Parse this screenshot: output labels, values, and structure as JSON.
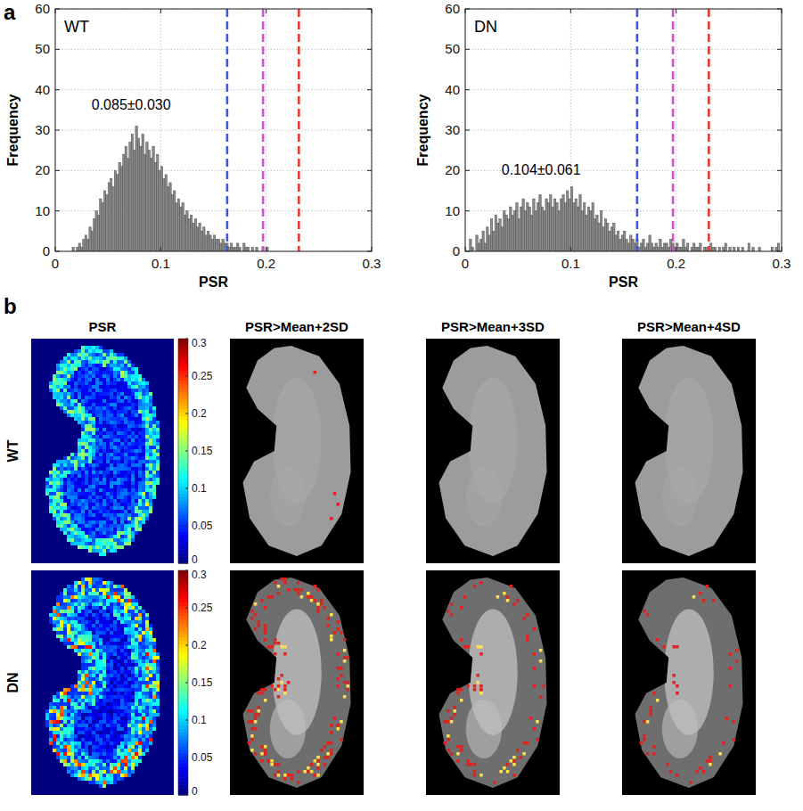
{
  "panel_labels": [
    "a",
    "b"
  ],
  "chart_data": [
    {
      "type": "histogram",
      "title": "WT",
      "xlabel": "PSR",
      "ylabel": "Frequency",
      "annotation": {
        "text": "0.085±0.030",
        "x": 0.072,
        "y": 35
      },
      "xlim": [
        0,
        0.3
      ],
      "xticks": [
        0,
        0.1,
        0.2,
        0.3
      ],
      "ylim": [
        0,
        60
      ],
      "yticks": [
        0,
        10,
        20,
        30,
        40,
        50,
        60
      ],
      "grid": true,
      "color": "#8c8c8c",
      "bins": [
        0.014,
        0.016,
        0.018,
        0.02,
        0.022,
        0.024,
        0.026,
        0.028,
        0.03,
        0.032,
        0.034,
        0.036,
        0.038,
        0.04,
        0.042,
        0.044,
        0.046,
        0.048,
        0.05,
        0.052,
        0.054,
        0.056,
        0.058,
        0.06,
        0.062,
        0.064,
        0.066,
        0.068,
        0.07,
        0.072,
        0.074,
        0.076,
        0.078,
        0.08,
        0.082,
        0.084,
        0.086,
        0.088,
        0.09,
        0.092,
        0.094,
        0.096,
        0.098,
        0.1,
        0.102,
        0.104,
        0.106,
        0.108,
        0.11,
        0.112,
        0.114,
        0.116,
        0.118,
        0.12,
        0.122,
        0.124,
        0.126,
        0.128,
        0.13,
        0.132,
        0.134,
        0.136,
        0.138,
        0.14,
        0.142,
        0.144,
        0.146,
        0.148,
        0.15,
        0.152,
        0.154,
        0.156,
        0.158,
        0.16,
        0.162,
        0.164,
        0.166,
        0.168,
        0.17,
        0.172,
        0.174,
        0.176,
        0.178,
        0.18,
        0.182,
        0.184,
        0.186,
        0.188,
        0.19,
        0.192,
        0.194,
        0.196,
        0.198,
        0.2,
        0.202,
        0.204
      ],
      "counts": [
        0,
        1,
        0,
        1,
        2,
        1,
        3,
        4,
        3,
        6,
        5,
        8,
        10,
        9,
        13,
        12,
        15,
        14,
        17,
        18,
        16,
        20,
        19,
        22,
        21,
        24,
        26,
        23,
        27,
        29,
        25,
        31,
        28,
        26,
        29,
        24,
        27,
        25,
        23,
        26,
        22,
        24,
        20,
        21,
        18,
        19,
        16,
        17,
        14,
        15,
        12,
        13,
        11,
        12,
        9,
        10,
        8,
        9,
        7,
        8,
        6,
        7,
        5,
        6,
        4,
        5,
        4,
        3,
        4,
        3,
        3,
        2,
        3,
        2,
        2,
        1,
        2,
        1,
        1,
        2,
        1,
        0,
        2,
        1,
        1,
        0,
        1,
        0,
        1,
        0,
        0,
        1,
        0,
        1,
        0
      ],
      "reference_lines": {
        "values": [
          0.163,
          0.197,
          0.231
        ],
        "colors": [
          "#3d5bd9",
          "#cc55cc",
          "#e8392e"
        ]
      },
      "line_style": "dashed"
    },
    {
      "type": "histogram",
      "title": "DN",
      "xlabel": "PSR",
      "ylabel": "Frequency",
      "annotation": {
        "text": "0.104±0.061",
        "x": 0.072,
        "y": 19
      },
      "xlim": [
        0,
        0.3
      ],
      "xticks": [
        0,
        0.1,
        0.2,
        0.3
      ],
      "ylim": [
        0,
        60
      ],
      "yticks": [
        0,
        10,
        20,
        30,
        40,
        50,
        60
      ],
      "grid": true,
      "color": "#8c8c8c",
      "bins": [
        0,
        0.002,
        0.004,
        0.006,
        0.008,
        0.01,
        0.012,
        0.014,
        0.016,
        0.018,
        0.02,
        0.022,
        0.024,
        0.026,
        0.028,
        0.03,
        0.032,
        0.034,
        0.036,
        0.038,
        0.04,
        0.042,
        0.044,
        0.046,
        0.048,
        0.05,
        0.052,
        0.054,
        0.056,
        0.058,
        0.06,
        0.062,
        0.064,
        0.066,
        0.068,
        0.07,
        0.072,
        0.074,
        0.076,
        0.078,
        0.08,
        0.082,
        0.084,
        0.086,
        0.088,
        0.09,
        0.092,
        0.094,
        0.096,
        0.098,
        0.1,
        0.102,
        0.104,
        0.106,
        0.108,
        0.11,
        0.112,
        0.114,
        0.116,
        0.118,
        0.12,
        0.122,
        0.124,
        0.126,
        0.128,
        0.13,
        0.132,
        0.134,
        0.136,
        0.138,
        0.14,
        0.142,
        0.144,
        0.146,
        0.148,
        0.15,
        0.152,
        0.154,
        0.156,
        0.158,
        0.16,
        0.162,
        0.164,
        0.166,
        0.168,
        0.17,
        0.172,
        0.174,
        0.176,
        0.178,
        0.18,
        0.182,
        0.184,
        0.186,
        0.188,
        0.19,
        0.192,
        0.194,
        0.196,
        0.198,
        0.2,
        0.202,
        0.204,
        0.206,
        0.208,
        0.21,
        0.212,
        0.214,
        0.216,
        0.218,
        0.22,
        0.222,
        0.224,
        0.226,
        0.228,
        0.23,
        0.232,
        0.234,
        0.236,
        0.238,
        0.24,
        0.242,
        0.244,
        0.246,
        0.248,
        0.25,
        0.252,
        0.254,
        0.256,
        0.258,
        0.26,
        0.262,
        0.264,
        0.266,
        0.268,
        0.27,
        0.272,
        0.274,
        0.276,
        0.278,
        0.28,
        0.282,
        0.284,
        0.286,
        0.288,
        0.29,
        0.292,
        0.294,
        0.296,
        0.298,
        0.3
      ],
      "counts": [
        0,
        0,
        3,
        1,
        0,
        4,
        2,
        3,
        5,
        2,
        6,
        4,
        8,
        5,
        9,
        7,
        8,
        6,
        10,
        9,
        8,
        11,
        9,
        10,
        12,
        8,
        11,
        13,
        10,
        12,
        11,
        9,
        13,
        10,
        12,
        14,
        11,
        10,
        13,
        12,
        14,
        11,
        13,
        12,
        10,
        13,
        14,
        12,
        15,
        13,
        16,
        12,
        13,
        11,
        14,
        10,
        12,
        9,
        11,
        10,
        12,
        8,
        9,
        7,
        10,
        6,
        8,
        7,
        5,
        6,
        7,
        4,
        5,
        3,
        4,
        5,
        3,
        2,
        4,
        3,
        2,
        3,
        1,
        2,
        3,
        1,
        2,
        4,
        2,
        1,
        2,
        1,
        3,
        1,
        2,
        2,
        1,
        3,
        2,
        1,
        2,
        1,
        1,
        3,
        1,
        2,
        0,
        1,
        2,
        1,
        1,
        2,
        0,
        1,
        1,
        0,
        2,
        1,
        1,
        0,
        1,
        0,
        1,
        2,
        0,
        1,
        0,
        1,
        0,
        1,
        0,
        1,
        0,
        0,
        2,
        0,
        1,
        0,
        0,
        1,
        0,
        0,
        0,
        0,
        0,
        1,
        0,
        1,
        2,
        0
      ],
      "reference_lines": {
        "values": [
          0.163,
          0.197,
          0.231
        ],
        "colors": [
          "#3d5bd9",
          "#cc55cc",
          "#e8392e"
        ]
      },
      "line_style": "dashed"
    }
  ],
  "image_panel": {
    "columns": [
      "PSR",
      "PSR>Mean+2SD",
      "PSR>Mean+3SD",
      "PSR>Mean+4SD"
    ],
    "rows": [
      "WT",
      "DN"
    ],
    "colorbar": {
      "range": [
        0,
        0.3
      ],
      "ticks": [
        0,
        0.05,
        0.1,
        0.15,
        0.2,
        0.25,
        0.3
      ]
    }
  }
}
